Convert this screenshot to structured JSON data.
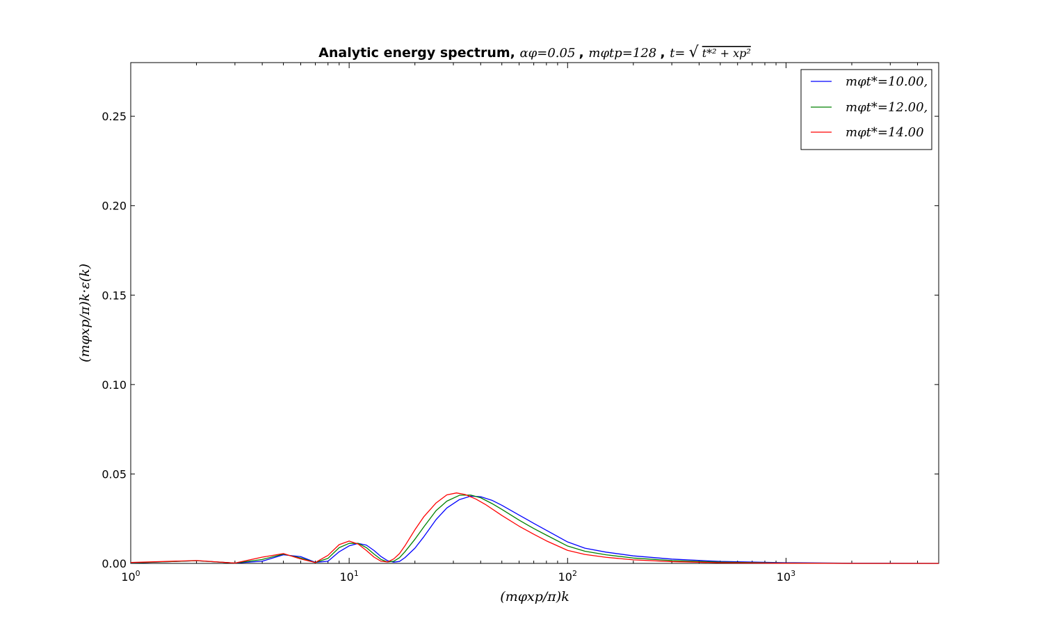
{
  "chart_data": {
    "type": "line",
    "title": {
      "prefix": "Analytic energy spectrum, ",
      "p1": "αφ=0.05",
      "sep1": ", ",
      "p2": "mφtp=128",
      "sep2": ", ",
      "p3_left": "t=",
      "p3_radicand": "t*² + xp²"
    },
    "xlabel": "(mφxp/π)k",
    "ylabel": "(mφxp/π)k·ε(k)",
    "x_scale": "log",
    "xlim": [
      1,
      5000
    ],
    "ylim": [
      0,
      0.28
    ],
    "x_ticks": [
      {
        "value": 1,
        "base": "10",
        "exp": "0"
      },
      {
        "value": 10,
        "base": "10",
        "exp": "1"
      },
      {
        "value": 100,
        "base": "10",
        "exp": "2"
      },
      {
        "value": 1000,
        "base": "10",
        "exp": "3"
      }
    ],
    "y_ticks": [
      {
        "value": 0.0,
        "label": "0.00"
      },
      {
        "value": 0.05,
        "label": "0.05"
      },
      {
        "value": 0.1,
        "label": "0.10"
      },
      {
        "value": 0.15,
        "label": "0.15"
      },
      {
        "value": 0.2,
        "label": "0.20"
      },
      {
        "value": 0.25,
        "label": "0.25"
      }
    ],
    "grid": false,
    "legend_position": "top-right",
    "series": [
      {
        "name": "mφt*=10.00,",
        "color": "#0000ff",
        "points": [
          [
            1,
            0.0002
          ],
          [
            2,
            0.0015
          ],
          [
            3,
            0.0002
          ],
          [
            4,
            0.0012
          ],
          [
            5,
            0.0048
          ],
          [
            6,
            0.0038
          ],
          [
            7,
            0.0006
          ],
          [
            8,
            0.0012
          ],
          [
            9,
            0.0065
          ],
          [
            10,
            0.0098
          ],
          [
            11,
            0.0112
          ],
          [
            12,
            0.0102
          ],
          [
            13,
            0.0072
          ],
          [
            14,
            0.0038
          ],
          [
            15,
            0.0015
          ],
          [
            16,
            0.0007
          ],
          [
            17,
            0.0011
          ],
          [
            18,
            0.0032
          ],
          [
            20,
            0.0085
          ],
          [
            22,
            0.015
          ],
          [
            25,
            0.0245
          ],
          [
            28,
            0.031
          ],
          [
            32,
            0.0357
          ],
          [
            36,
            0.0376
          ],
          [
            40,
            0.0373
          ],
          [
            45,
            0.0353
          ],
          [
            50,
            0.0325
          ],
          [
            60,
            0.027
          ],
          [
            70,
            0.0224
          ],
          [
            80,
            0.0185
          ],
          [
            100,
            0.012
          ],
          [
            120,
            0.0085
          ],
          [
            150,
            0.0063
          ],
          [
            200,
            0.0042
          ],
          [
            300,
            0.0024
          ],
          [
            500,
            0.0011
          ],
          [
            1000,
            0.0004
          ],
          [
            2000,
            0.0001
          ],
          [
            5000,
            0.0
          ]
        ]
      },
      {
        "name": "mφt*=12.00,",
        "color": "#008000",
        "points": [
          [
            1,
            0.0003
          ],
          [
            2,
            0.0015
          ],
          [
            3,
            0.0002
          ],
          [
            4,
            0.0022
          ],
          [
            5,
            0.0052
          ],
          [
            6,
            0.003
          ],
          [
            7,
            0.0005
          ],
          [
            8,
            0.0028
          ],
          [
            9,
            0.0088
          ],
          [
            10,
            0.0112
          ],
          [
            11,
            0.0112
          ],
          [
            12,
            0.0088
          ],
          [
            13,
            0.0052
          ],
          [
            14,
            0.0022
          ],
          [
            15,
            0.0008
          ],
          [
            16,
            0.0012
          ],
          [
            17,
            0.0032
          ],
          [
            18,
            0.0065
          ],
          [
            20,
            0.0135
          ],
          [
            22,
            0.0205
          ],
          [
            25,
            0.0295
          ],
          [
            28,
            0.0348
          ],
          [
            32,
            0.0381
          ],
          [
            36,
            0.0382
          ],
          [
            40,
            0.0367
          ],
          [
            45,
            0.0335
          ],
          [
            50,
            0.0302
          ],
          [
            60,
            0.0242
          ],
          [
            70,
            0.0195
          ],
          [
            80,
            0.0158
          ],
          [
            100,
            0.0097
          ],
          [
            120,
            0.0068
          ],
          [
            150,
            0.0048
          ],
          [
            200,
            0.003
          ],
          [
            300,
            0.0016
          ],
          [
            500,
            0.0007
          ],
          [
            1000,
            0.0002
          ],
          [
            2000,
            0.0
          ],
          [
            5000,
            0.0
          ]
        ]
      },
      {
        "name": "mφt*=14.00",
        "color": "#ff0000",
        "points": [
          [
            1,
            0.0005
          ],
          [
            2,
            0.0016
          ],
          [
            3,
            0.0002
          ],
          [
            4,
            0.0035
          ],
          [
            5,
            0.0055
          ],
          [
            6,
            0.0025
          ],
          [
            7,
            0.0005
          ],
          [
            8,
            0.0045
          ],
          [
            9,
            0.0105
          ],
          [
            10,
            0.0125
          ],
          [
            11,
            0.0108
          ],
          [
            12,
            0.0072
          ],
          [
            13,
            0.0035
          ],
          [
            14,
            0.0012
          ],
          [
            15,
            0.0008
          ],
          [
            16,
            0.0025
          ],
          [
            17,
            0.0055
          ],
          [
            18,
            0.0098
          ],
          [
            20,
            0.0188
          ],
          [
            22,
            0.0262
          ],
          [
            25,
            0.0338
          ],
          [
            28,
            0.0383
          ],
          [
            31,
            0.0394
          ],
          [
            34,
            0.0385
          ],
          [
            38,
            0.036
          ],
          [
            42,
            0.033
          ],
          [
            50,
            0.0268
          ],
          [
            60,
            0.0208
          ],
          [
            70,
            0.0163
          ],
          [
            80,
            0.0126
          ],
          [
            100,
            0.0073
          ],
          [
            120,
            0.005
          ],
          [
            150,
            0.0034
          ],
          [
            200,
            0.002
          ],
          [
            300,
            0.001
          ],
          [
            500,
            0.0004
          ],
          [
            1000,
            0.0001
          ],
          [
            2000,
            0.0
          ],
          [
            5000,
            0.0
          ]
        ]
      }
    ]
  }
}
